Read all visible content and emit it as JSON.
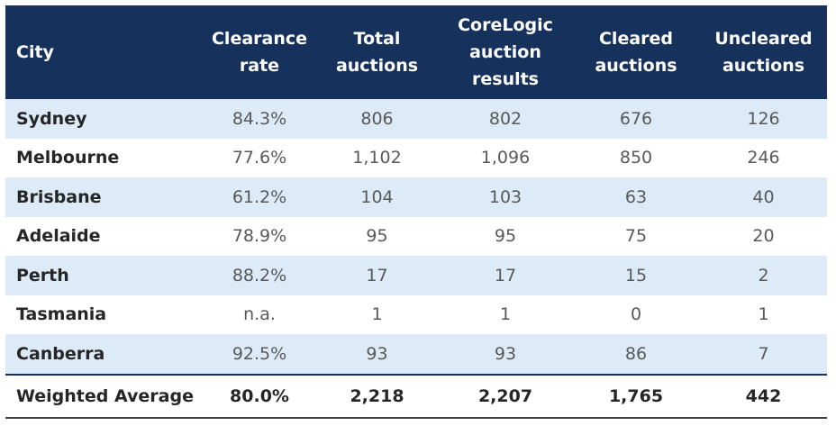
{
  "table": {
    "headers": {
      "city": "City",
      "clearance_rate": [
        "Clearance",
        "rate"
      ],
      "total_auctions": [
        "Total",
        "auctions"
      ],
      "corelogic_results": [
        "CoreLogic",
        "auction",
        "results"
      ],
      "cleared_auctions": [
        "Cleared",
        "auctions"
      ],
      "uncleared_auctions": [
        "Uncleared",
        "auctions"
      ]
    },
    "rows": [
      {
        "city": "Sydney",
        "rate": "84.3%",
        "total": "806",
        "corelogic": "802",
        "cleared": "676",
        "uncleared": "126"
      },
      {
        "city": "Melbourne",
        "rate": "77.6%",
        "total": "1,102",
        "corelogic": "1,096",
        "cleared": "850",
        "uncleared": "246"
      },
      {
        "city": "Brisbane",
        "rate": "61.2%",
        "total": "104",
        "corelogic": "103",
        "cleared": "63",
        "uncleared": "40"
      },
      {
        "city": "Adelaide",
        "rate": "78.9%",
        "total": "95",
        "corelogic": "95",
        "cleared": "75",
        "uncleared": "20"
      },
      {
        "city": "Perth",
        "rate": "88.2%",
        "total": "17",
        "corelogic": "17",
        "cleared": "15",
        "uncleared": "2"
      },
      {
        "city": "Tasmania",
        "rate": "n.a.",
        "total": "1",
        "corelogic": "1",
        "cleared": "0",
        "uncleared": "1"
      },
      {
        "city": "Canberra",
        "rate": "92.5%",
        "total": "93",
        "corelogic": "93",
        "cleared": "86",
        "uncleared": "7"
      }
    ],
    "total_row": {
      "city": "Weighted Average",
      "rate": "80.0%",
      "total": "2,218",
      "corelogic": "2,207",
      "cleared": "1,765",
      "uncleared": "442"
    }
  },
  "colors": {
    "header_bg": "#16325c",
    "header_text": "#ffffff",
    "alt_row_bg": "#dcebf7",
    "value_text": "#595959"
  }
}
